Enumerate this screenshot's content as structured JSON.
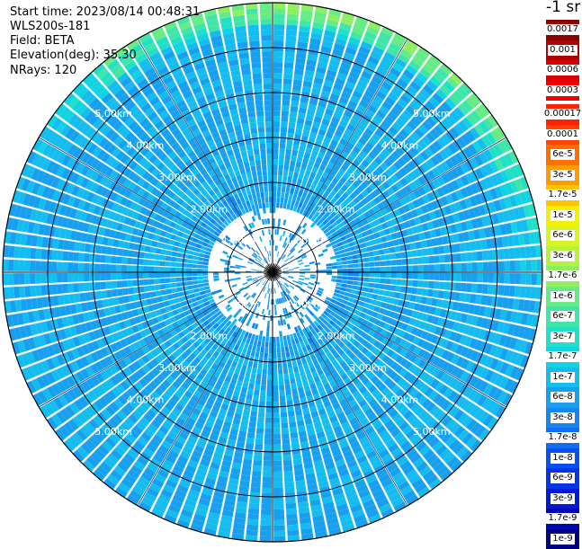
{
  "info": {
    "start_time": "Start time: 2023/08/14 00:48:31",
    "device": "WLS200s-181",
    "field": "Field: BETA",
    "elevation": "Elevation(deg): 35.30",
    "nrays": "NRays: 120"
  },
  "colorbar": {
    "unit": "-1 sr",
    "upper": [
      {
        "label": "0.0017",
        "color": "#8b0000"
      },
      {
        "label": "0.001",
        "color": "#b00000"
      },
      {
        "label": "0.0006",
        "color": "#d80000"
      },
      {
        "label": "0.0003",
        "color": "#f00000"
      }
    ],
    "lower": [
      {
        "label": "0.00017",
        "color": "#ff2000"
      },
      {
        "label": "0.0001",
        "color": "#ff4500"
      },
      {
        "label": "6e-5",
        "color": "#ff7000"
      },
      {
        "label": "3e-5",
        "color": "#ff9a00"
      },
      {
        "label": "1.7e-5",
        "color": "#ffc400"
      },
      {
        "label": "1e-5",
        "color": "#f2f200"
      },
      {
        "label": "6e-6",
        "color": "#d8f520"
      },
      {
        "label": "3e-6",
        "color": "#b4f23c"
      },
      {
        "label": "1.7e-6",
        "color": "#8ef060"
      },
      {
        "label": "1e-6",
        "color": "#66ec84"
      },
      {
        "label": "6e-7",
        "color": "#40e6a8"
      },
      {
        "label": "3e-7",
        "color": "#20e0c8"
      },
      {
        "label": "1.7e-7",
        "color": "#10d4e4"
      },
      {
        "label": "1e-7",
        "color": "#14bcf0"
      },
      {
        "label": "6e-8",
        "color": "#18a0f0"
      },
      {
        "label": "3e-8",
        "color": "#1486f0"
      },
      {
        "label": "1.7e-8",
        "color": "#106ef0"
      },
      {
        "label": "1e-8",
        "color": "#0a50f0"
      },
      {
        "label": "6e-9",
        "color": "#0434e8"
      },
      {
        "label": "3e-9",
        "color": "#0018d8"
      },
      {
        "label": "1.7e-9",
        "color": "#0008b0"
      },
      {
        "label": "1e-9",
        "color": "#000080"
      }
    ]
  },
  "chart_data": {
    "type": "heatmap",
    "projection": "polar PPI",
    "n_rays": 120,
    "max_range_km": 6,
    "range_rings_km": [
      1,
      2,
      3,
      4,
      5,
      6
    ],
    "ring_labels": [
      "1.00km",
      "2.00km",
      "3.00km",
      "4.00km",
      "5.00km"
    ],
    "field": "BETA",
    "dominant_value_range": [
      "1.7e-8",
      "1.7e-7"
    ],
    "edge_value_range_north": [
      "3e-7",
      "3e-6"
    ]
  }
}
